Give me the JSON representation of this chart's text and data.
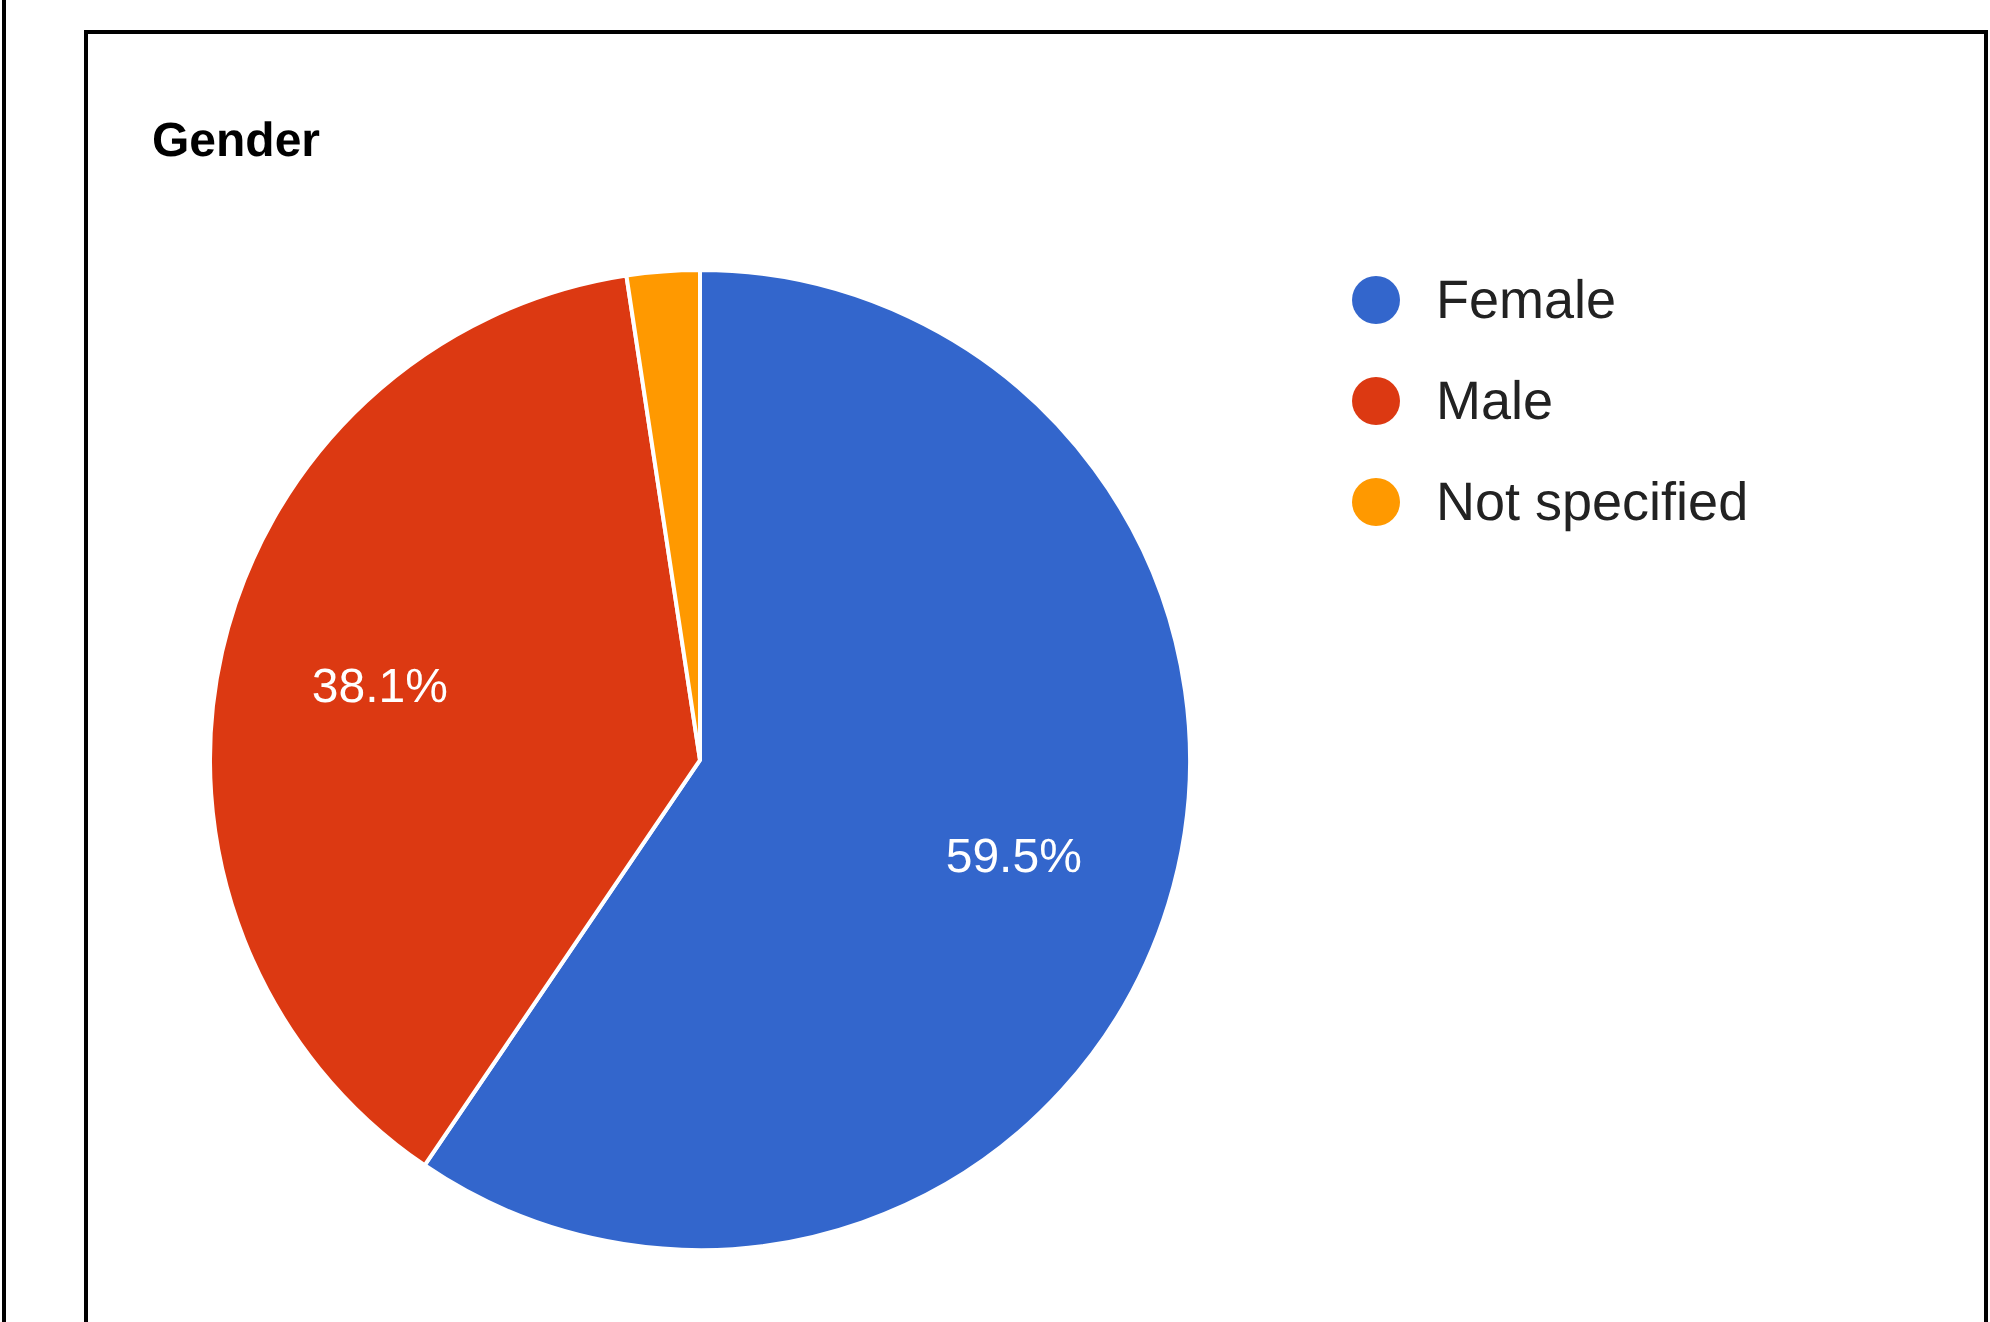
{
  "chart_data": {
    "type": "pie",
    "title": "Gender",
    "categories": [
      "Female",
      "Male",
      "Not specified"
    ],
    "values": [
      59.5,
      38.1,
      2.4
    ],
    "colors": [
      "#3366cc",
      "#dc3912",
      "#ff9900"
    ],
    "value_labels": [
      "59.5%",
      "38.1%",
      null
    ],
    "legend": "top right"
  }
}
